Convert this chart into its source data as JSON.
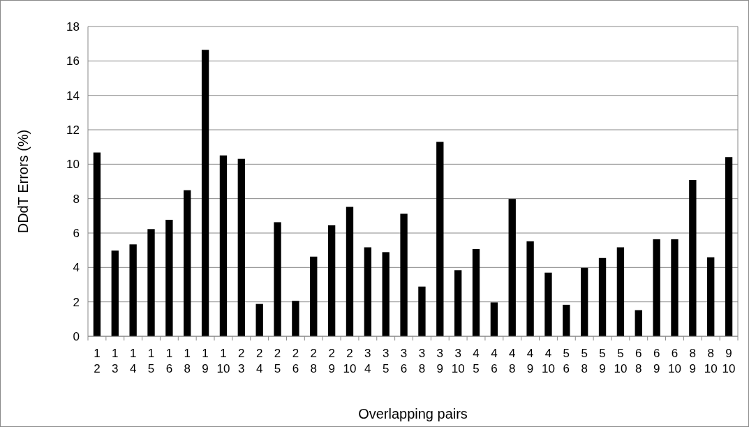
{
  "chart_data": {
    "type": "bar",
    "xlabel": "Overlapping pairs",
    "ylabel": "DDdT Errors (%)",
    "categories": [
      "1\n2",
      "1\n3",
      "1\n4",
      "1\n5",
      "1\n6",
      "1\n8",
      "1\n9",
      "1\n10",
      "2\n3",
      "2\n4",
      "2\n5",
      "2\n6",
      "2\n8",
      "2\n9",
      "2\n10",
      "3\n4",
      "3\n5",
      "3\n6",
      "3\n8",
      "3\n9",
      "3\n10",
      "4\n5",
      "4\n6",
      "4\n8",
      "4\n9",
      "4\n10",
      "5\n6",
      "5\n8",
      "5\n9",
      "5\n10",
      "6\n8",
      "6\n9",
      "6\n10",
      "8\n9",
      "8\n10",
      "9\n10"
    ],
    "values": [
      10.68,
      4.98,
      5.34,
      6.23,
      6.77,
      8.49,
      16.64,
      10.51,
      10.31,
      1.88,
      6.63,
      2.06,
      4.63,
      6.45,
      7.52,
      5.17,
      4.89,
      7.12,
      2.89,
      11.3,
      3.84,
      5.07,
      1.97,
      7.98,
      5.52,
      3.7,
      1.83,
      3.98,
      4.55,
      5.17,
      1.52,
      5.64,
      5.64,
      9.08,
      4.59,
      10.41
    ],
    "color": "#000000",
    "ylim": [
      0,
      18
    ],
    "yticks": [
      0,
      2,
      4,
      6,
      8,
      10,
      12,
      14,
      16,
      18
    ],
    "grid": "y"
  }
}
